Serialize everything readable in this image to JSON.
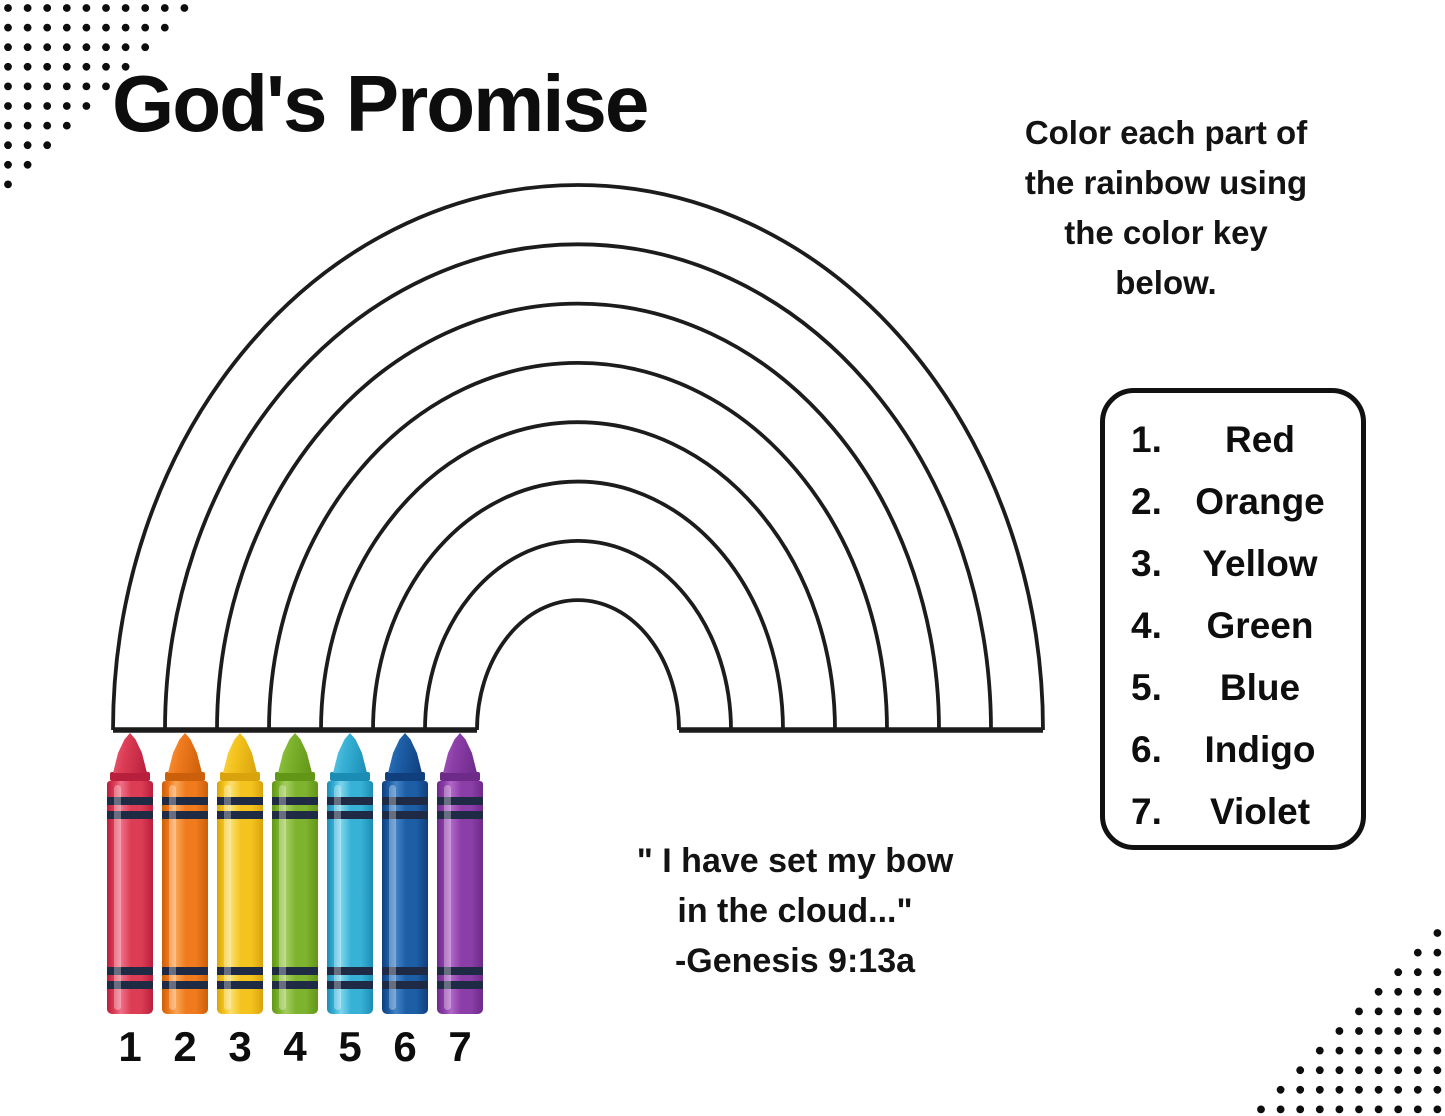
{
  "title": "God's Promise",
  "instructions": {
    "lines": [
      "Color each part of",
      "the rainbow using",
      "the color key",
      "below."
    ]
  },
  "verse": {
    "lines": [
      "\" I have set my bow",
      "in the cloud...\"",
      "-Genesis 9:13a"
    ]
  },
  "color_key": {
    "items": [
      {
        "number": "1.",
        "label": "Red"
      },
      {
        "number": "2.",
        "label": "Orange"
      },
      {
        "number": "3.",
        "label": "Yellow"
      },
      {
        "number": "4.",
        "label": "Green"
      },
      {
        "number": "5.",
        "label": "Blue"
      },
      {
        "number": "6.",
        "label": "Indigo"
      },
      {
        "number": "7.",
        "label": "Violet"
      }
    ]
  },
  "rainbow": {
    "bands": 7,
    "arc_lines": 8,
    "stroke_color": "#1c1c1c"
  },
  "crayons": {
    "stripe_color": "#1f2a45",
    "items": [
      {
        "number": "1",
        "name": "red",
        "color": "#dc3d55",
        "dark": "#b81f3d",
        "light": "#ef7189"
      },
      {
        "number": "2",
        "name": "orange",
        "color": "#f07a1e",
        "dark": "#cc5f09",
        "light": "#f9a655"
      },
      {
        "number": "3",
        "name": "yellow",
        "color": "#f4c41e",
        "dark": "#d9a30d",
        "light": "#fbdf6f"
      },
      {
        "number": "4",
        "name": "green",
        "color": "#7db32e",
        "dark": "#619617",
        "light": "#a5cd60"
      },
      {
        "number": "5",
        "name": "blue",
        "color": "#38b1d6",
        "dark": "#1b8db4",
        "light": "#7ed6ec"
      },
      {
        "number": "6",
        "name": "indigo",
        "color": "#1d5fa7",
        "dark": "#103f7e",
        "light": "#4384c6"
      },
      {
        "number": "7",
        "name": "violet",
        "color": "#8c3ea8",
        "dark": "#6d2a89",
        "light": "#b168c9"
      }
    ]
  },
  "decor": {
    "dot_color": "#0d0d0d"
  }
}
